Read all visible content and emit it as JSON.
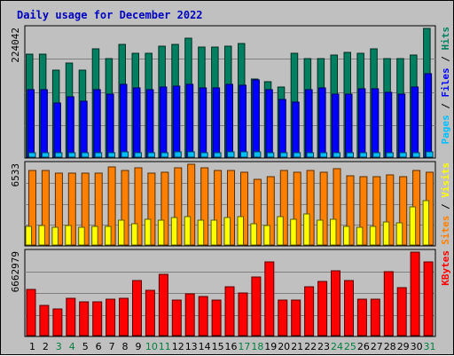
{
  "chart_data": {
    "type": "bar",
    "title": "Daily usage for December 2022",
    "colors": {
      "frame": "#c0c0c0",
      "title": "#0000c0",
      "hits": "#008060",
      "files": "#0000ff",
      "pages": "#00c0ff",
      "visits": "#ffff00",
      "sites": "#ff8000",
      "kbytes": "#ff0000",
      "separator": "#000000",
      "weekday": "#000000",
      "weekend": "#008040"
    },
    "categories": [
      "1",
      "2",
      "3",
      "4",
      "5",
      "6",
      "7",
      "8",
      "9",
      "10",
      "11",
      "12",
      "13",
      "14",
      "15",
      "16",
      "17",
      "18",
      "19",
      "20",
      "21",
      "22",
      "23",
      "24",
      "25",
      "26",
      "27",
      "28",
      "29",
      "30",
      "31"
    ],
    "weekend_days": [
      "3",
      "4",
      "10",
      "11",
      "17",
      "18",
      "24",
      "25",
      "31"
    ],
    "panels": [
      {
        "name": "hits-files-pages",
        "ytick_label": "224042",
        "ymax": 224042,
        "legend": [
          {
            "text": "Pages",
            "color": "#00c0ff"
          },
          {
            "text": " / ",
            "color": "#000000"
          },
          {
            "text": "Files",
            "color": "#0000ff"
          },
          {
            "text": " / ",
            "color": "#000000"
          },
          {
            "text": "Hits",
            "color": "#008060"
          }
        ],
        "series": [
          {
            "name": "Hits",
            "color": "#008060",
            "values": [
              180000,
              179000,
              151000,
              164000,
              151000,
              188000,
              172000,
              196000,
              181000,
              181000,
              193000,
              197000,
              207000,
              191000,
              192000,
              193000,
              198000,
              136000,
              132000,
              122000,
              181000,
              172000,
              172000,
              177000,
              182000,
              181000,
              188000,
              171000,
              171000,
              178000,
              224042
            ]
          },
          {
            "name": "Files",
            "color": "#0000ff",
            "values": [
              117000,
              117000,
              94000,
              105000,
              97000,
              117000,
              110000,
              126000,
              121000,
              118000,
              122000,
              124000,
              127000,
              120000,
              121000,
              126000,
              125000,
              134000,
              118000,
              101000,
              96000,
              117000,
              121000,
              109000,
              110000,
              119000,
              119000,
              113000,
              110000,
              122000,
              146000
            ]
          },
          {
            "name": "Pages",
            "color": "#00c0ff",
            "values": [
              8000,
              8000,
              7000,
              8000,
              7000,
              8000,
              8000,
              9000,
              8000,
              8000,
              8000,
              9000,
              9000,
              8000,
              8000,
              9000,
              9000,
              9000,
              8000,
              7000,
              7000,
              8000,
              8000,
              8000,
              8000,
              8000,
              8000,
              8000,
              8000,
              8000,
              9000
            ]
          }
        ]
      },
      {
        "name": "visits-sites",
        "ytick_label": "6533",
        "ymax": 6533,
        "legend": [
          {
            "text": "Sites",
            "color": "#ff8000"
          },
          {
            "text": " / ",
            "color": "#000000"
          },
          {
            "text": "Visits",
            "color": "#ffff00"
          }
        ],
        "series": [
          {
            "name": "Sites",
            "color": "#ff8000",
            "values": [
              6000,
              6050,
              5800,
              5800,
              5800,
              5800,
              6350,
              6000,
              6250,
              5800,
              5900,
              6250,
              6533,
              6250,
              6000,
              6000,
              5900,
              5300,
              5550,
              6000,
              5900,
              6050,
              5900,
              6200,
              5600,
              5500,
              5550,
              5700,
              5500,
              6000,
              5900
            ]
          },
          {
            "name": "Visits",
            "color": "#ffff00",
            "values": [
              1500,
              1550,
              1400,
              1600,
              1400,
              1500,
              1500,
              2000,
              1700,
              2100,
              2000,
              2200,
              2300,
              2000,
              2000,
              2200,
              2300,
              1700,
              1600,
              2300,
              2100,
              2500,
              2000,
              2100,
              1500,
              1400,
              1500,
              1900,
              1800,
              3100,
              3600
            ]
          }
        ]
      },
      {
        "name": "kbytes",
        "ytick_label": "6662979",
        "ymax": 6662979,
        "legend": [
          {
            "text": "KBytes",
            "color": "#ff0000"
          }
        ],
        "series": [
          {
            "name": "KBytes",
            "color": "#ff0000",
            "values": [
              3700000,
              2400000,
              2100000,
              3000000,
              2700000,
              2700000,
              2900000,
              3000000,
              4400000,
              3600000,
              4900000,
              2800000,
              3300000,
              3100000,
              2800000,
              3900000,
              3400000,
              4700000,
              5900000,
              2800000,
              2800000,
              3900000,
              4300000,
              5200000,
              4400000,
              2900000,
              2900000,
              5100000,
              3800000,
              6662979,
              5900000
            ]
          }
        ]
      }
    ]
  }
}
